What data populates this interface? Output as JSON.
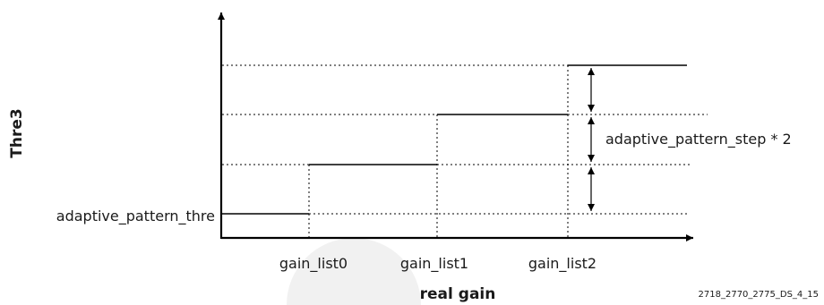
{
  "diagram": {
    "y_axis_label": "Thre3",
    "x_axis_label": "real gain",
    "base_label": "adaptive_pattern_thre",
    "step_label": "adaptive_pattern_step * 2",
    "gain_ticks": [
      "gain_list0",
      "gain_list1",
      "gain_list2"
    ],
    "figure_id": "2718_2770_2775_DS_4_15"
  }
}
